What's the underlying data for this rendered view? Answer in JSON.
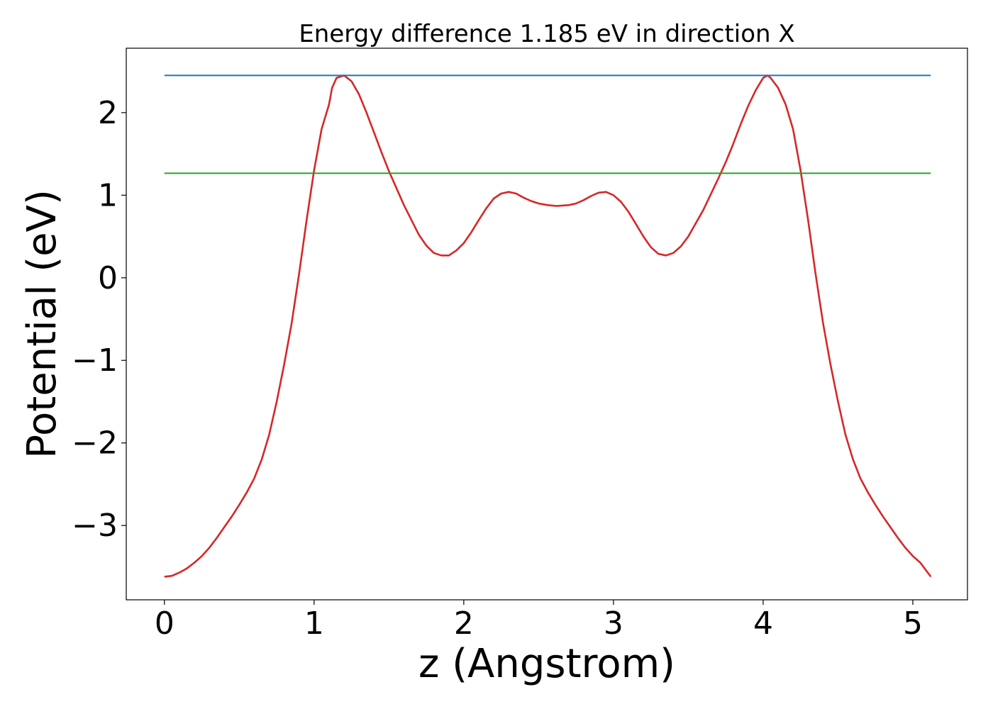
{
  "chart_data": {
    "type": "line",
    "title": "Energy difference 1.185 eV in direction X",
    "xlabel": "z (Angstrom)",
    "ylabel": "Potential (eV)",
    "xlim": [
      -0.255,
      5.365
    ],
    "ylim": [
      -3.9,
      2.78
    ],
    "xticks": [
      0,
      1,
      2,
      3,
      4,
      5
    ],
    "xtick_labels": [
      "0",
      "1",
      "2",
      "3",
      "4",
      "5"
    ],
    "yticks": [
      -3,
      -2,
      -1,
      0,
      1,
      2
    ],
    "ytick_labels": [
      "−3",
      "−2",
      "−1",
      "0",
      "1",
      "2"
    ],
    "grid": false,
    "series": [
      {
        "color": "#d62728",
        "x": [
          0.0,
          0.05,
          0.1,
          0.15,
          0.2,
          0.25,
          0.3,
          0.35,
          0.4,
          0.45,
          0.5,
          0.55,
          0.6,
          0.65,
          0.7,
          0.75,
          0.8,
          0.85,
          0.9,
          0.95,
          1.0,
          1.05,
          1.1,
          1.12,
          1.15,
          1.2,
          1.25,
          1.3,
          1.35,
          1.4,
          1.45,
          1.5,
          1.6,
          1.7,
          1.75,
          1.8,
          1.85,
          1.9,
          1.95,
          2.0,
          2.05,
          2.1,
          2.15,
          2.2,
          2.25,
          2.3,
          2.35,
          2.4,
          2.45,
          2.5,
          2.56,
          2.62,
          2.7,
          2.75,
          2.8,
          2.85,
          2.9,
          2.95,
          3.0,
          3.05,
          3.1,
          3.15,
          3.2,
          3.25,
          3.3,
          3.35,
          3.4,
          3.45,
          3.5,
          3.6,
          3.7,
          3.75,
          3.8,
          3.85,
          3.9,
          3.95,
          4.0,
          4.03,
          4.05,
          4.1,
          4.15,
          4.2,
          4.25,
          4.3,
          4.35,
          4.4,
          4.45,
          4.5,
          4.55,
          4.6,
          4.65,
          4.7,
          4.75,
          4.8,
          4.85,
          4.9,
          4.95,
          5.0,
          5.05,
          5.12
        ],
        "y": [
          -3.62,
          -3.61,
          -3.57,
          -3.52,
          -3.45,
          -3.37,
          -3.27,
          -3.15,
          -3.02,
          -2.89,
          -2.75,
          -2.6,
          -2.43,
          -2.2,
          -1.9,
          -1.5,
          -1.05,
          -0.55,
          0.05,
          0.7,
          1.3,
          1.8,
          2.1,
          2.3,
          2.42,
          2.45,
          2.38,
          2.22,
          2.0,
          1.76,
          1.52,
          1.29,
          0.88,
          0.52,
          0.39,
          0.3,
          0.27,
          0.27,
          0.33,
          0.42,
          0.55,
          0.7,
          0.84,
          0.96,
          1.02,
          1.04,
          1.02,
          0.97,
          0.93,
          0.9,
          0.88,
          0.87,
          0.88,
          0.9,
          0.94,
          0.99,
          1.03,
          1.04,
          1.0,
          0.92,
          0.8,
          0.65,
          0.5,
          0.37,
          0.29,
          0.27,
          0.3,
          0.38,
          0.5,
          0.82,
          1.2,
          1.4,
          1.62,
          1.86,
          2.08,
          2.27,
          2.42,
          2.45,
          2.42,
          2.3,
          2.1,
          1.8,
          1.3,
          0.7,
          0.05,
          -0.55,
          -1.05,
          -1.5,
          -1.9,
          -2.2,
          -2.43,
          -2.6,
          -2.75,
          -2.89,
          -3.02,
          -3.15,
          -3.27,
          -3.37,
          -3.45,
          -3.62
        ]
      },
      {
        "color": "#1f77b4",
        "x": [
          0.0,
          5.12
        ],
        "y": [
          2.45,
          2.45
        ]
      },
      {
        "color": "#2ca02c",
        "x": [
          0.0,
          5.12
        ],
        "y": [
          1.265,
          1.265
        ]
      }
    ]
  }
}
